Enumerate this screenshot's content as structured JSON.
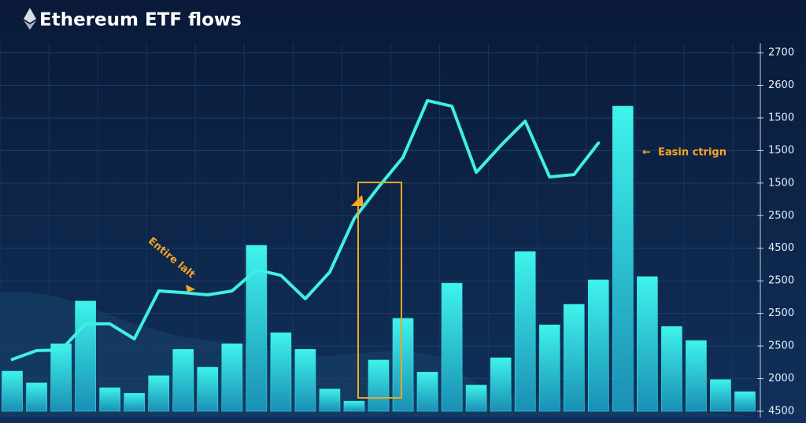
{
  "chart_data": {
    "type": "bar",
    "title": "Ethereum ETF flows",
    "categories": [
      null,
      null,
      null,
      null,
      null,
      null,
      null,
      null,
      null,
      null,
      null,
      null,
      null,
      null,
      null,
      null,
      null,
      null,
      null,
      null,
      null,
      null,
      null,
      null,
      null,
      null,
      null,
      null,
      null,
      null,
      null
    ],
    "series": [
      {
        "type": "bar",
        "color": "#2ee6e6",
        "values": [
          1.23,
          0.87,
          2.07,
          3.38,
          0.72,
          0.55,
          1.09,
          1.9,
          1.35,
          2.07,
          5.09,
          2.41,
          1.9,
          0.68,
          0.31,
          1.57,
          2.85,
          1.2,
          3.93,
          0.8,
          1.64,
          4.9,
          2.65,
          3.28,
          4.03,
          9.36,
          4.13,
          2.6,
          2.17,
          0.97,
          0.6
        ]
      },
      {
        "type": "line",
        "color": "#3ff0e0",
        "values": [
          1.59,
          1.86,
          1.88,
          2.68,
          2.68,
          2.22,
          3.69,
          3.64,
          3.57,
          3.69,
          4.34,
          4.17,
          3.45,
          4.27,
          5.91,
          6.88,
          7.79,
          9.53,
          9.36,
          7.33,
          8.15,
          8.9,
          7.19,
          7.26,
          8.23,
          null,
          null,
          null,
          null,
          null,
          null
        ]
      }
    ],
    "ylim": [
      -0.2,
      11.3
    ],
    "yticks": [
      {
        "value": 11,
        "label": "2700"
      },
      {
        "value": 10,
        "label": "2600"
      },
      {
        "value": 9,
        "label": "1500"
      },
      {
        "value": 8,
        "label": "1500"
      },
      {
        "value": 7,
        "label": "1500"
      },
      {
        "value": 6,
        "label": "2500"
      },
      {
        "value": 5,
        "label": "4500"
      },
      {
        "value": 4,
        "label": "2500"
      },
      {
        "value": 3,
        "label": "2500"
      },
      {
        "value": 2,
        "label": "2500"
      },
      {
        "value": 1,
        "label": "2000"
      },
      {
        "value": 0,
        "label": "4500"
      }
    ],
    "grid": true,
    "annotations": [
      "Entire lalt",
      "Easin ctrign"
    ]
  }
}
